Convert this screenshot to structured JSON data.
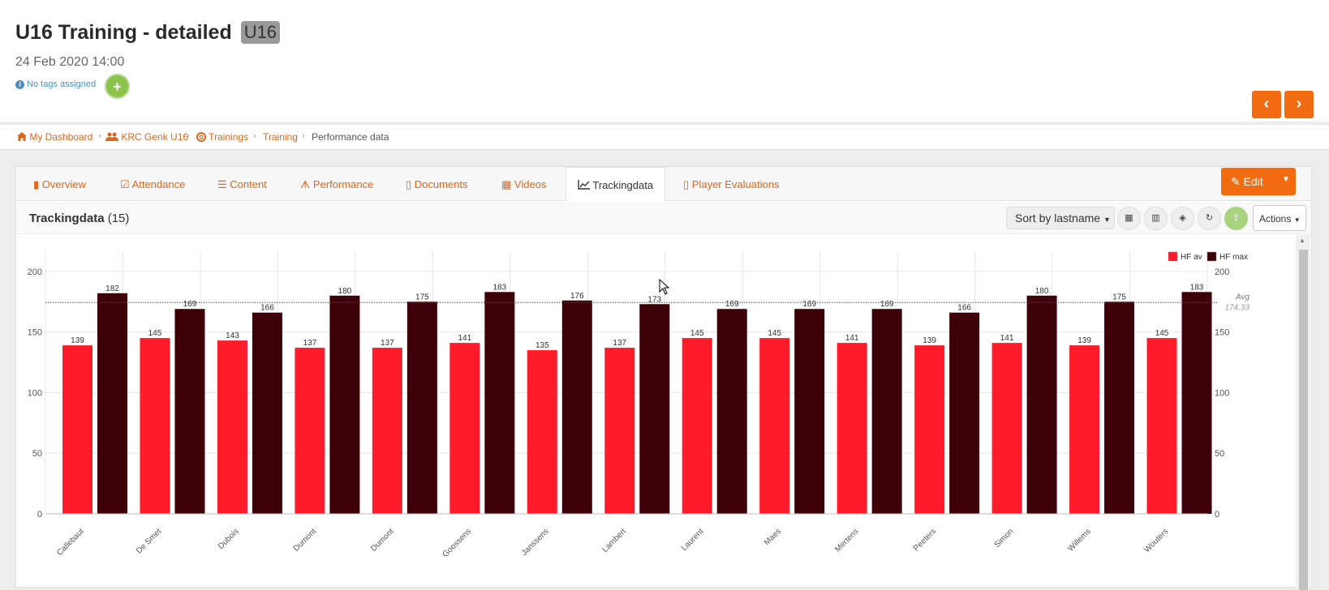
{
  "page": {
    "title": "U16 Training - detailed",
    "team_badge": "U16",
    "date": "24 Feb 2020 14:00",
    "tags_text": "No tags assigned",
    "add_tag_symbol": "+",
    "prev_symbol": "‹",
    "next_symbol": "›"
  },
  "breadcrumb": [
    "My Dashboard",
    "KRC Genk U16",
    "Trainings",
    "Training",
    "Performance data"
  ],
  "tabs": [
    "Overview",
    "Attendance",
    "Content",
    "Performance",
    "Documents",
    "Videos",
    "Trackingdata",
    "Player Evaluations"
  ],
  "active_tab": "Trackingdata",
  "edit_button": "Edit",
  "section": {
    "title": "Trackingdata",
    "count": "(15)",
    "sort_label": "Sort by lastname",
    "actions_label": "Actions",
    "icons": [
      "table-icon",
      "bar-chart-icon",
      "cube-icon",
      "refresh-icon",
      "upload-icon"
    ]
  },
  "colors": {
    "accent": "#f26b10",
    "link": "#e2661a",
    "hf_av": "#fe1c2a",
    "hf_max": "#3d0008"
  },
  "chart_data": {
    "type": "bar",
    "categories": [
      "Callebaut",
      "De Smet",
      "Dubois",
      "Dumont",
      "Dumont",
      "Goossens",
      "Janssens",
      "Lambert",
      "Laurent",
      "Maes",
      "Mertens",
      "Peeters",
      "Simon",
      "Willems",
      "Wouters"
    ],
    "series": [
      {
        "name": "HF av",
        "values": [
          139,
          145,
          143,
          137,
          137,
          141,
          135,
          137,
          145,
          145,
          141,
          139,
          141,
          139,
          145
        ]
      },
      {
        "name": "HF max",
        "values": [
          182,
          169,
          166,
          180,
          175,
          183,
          176,
          173,
          169,
          169,
          169,
          166,
          180,
          175,
          183
        ]
      }
    ],
    "ylim": [
      0,
      230
    ],
    "yticks": [
      0,
      50,
      100,
      150,
      200
    ],
    "avg_line": {
      "label": "Avg",
      "value": "174.33"
    },
    "legend": "top-right",
    "grid": true
  }
}
